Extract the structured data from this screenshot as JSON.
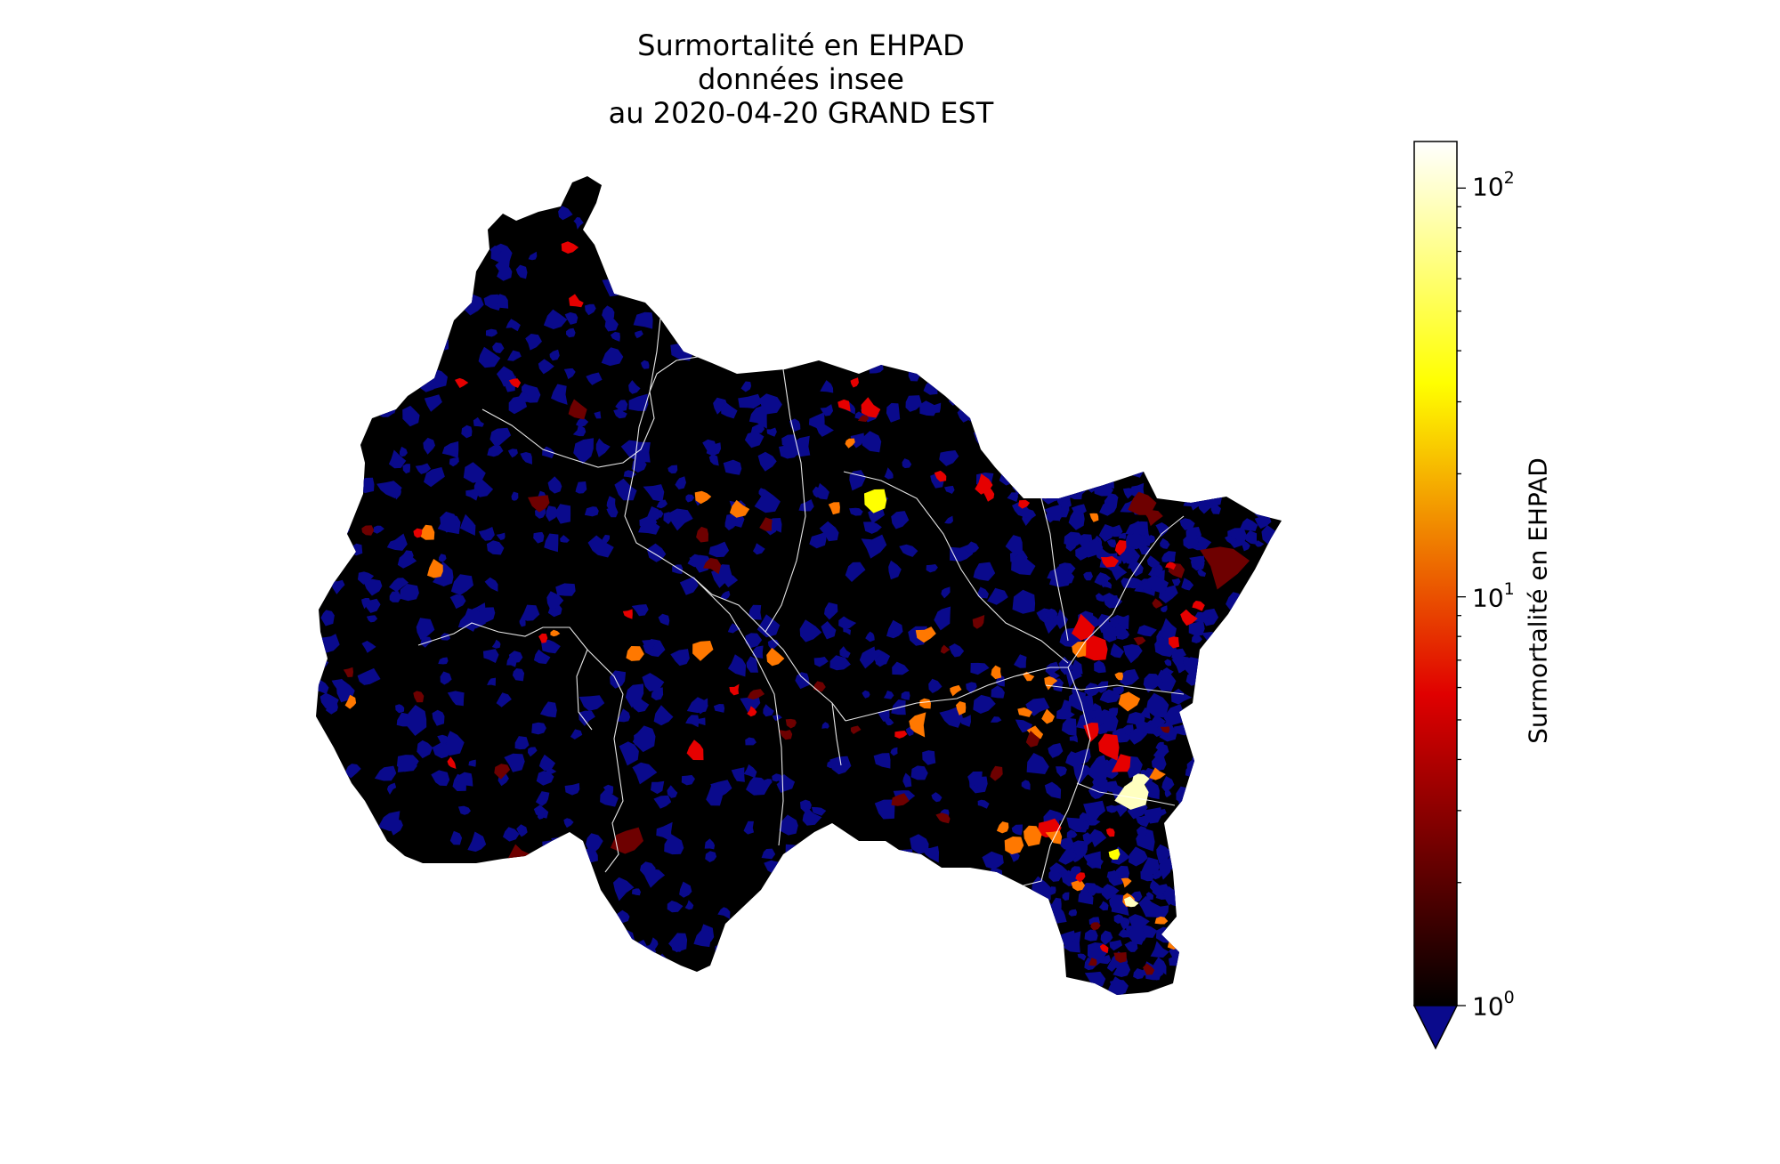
{
  "title_lines": [
    "Surmortalité en EHPAD",
    "données insee",
    "au 2020-04-20 GRAND EST"
  ],
  "colorbar": {
    "label": "Surmortalité en EHPAD",
    "scale": "log",
    "range": [
      1,
      130
    ],
    "ticks": [
      {
        "base": "10",
        "exp": "2",
        "value": 100
      },
      {
        "base": "10",
        "exp": "1",
        "value": 10
      },
      {
        "base": "10",
        "exp": "0",
        "value": 1
      }
    ],
    "colormap": "hot",
    "under_color": "#0a0a8c",
    "extend": "min"
  },
  "map": {
    "region": "GRAND EST",
    "colors": {
      "background": "#ffffff",
      "below_range": "#0a0a8c",
      "low": "#000000",
      "dark_red": "#6e0000",
      "red": "#e60000",
      "orange": "#ff7800",
      "yellow": "#ffff00",
      "pale_yellow": "#ffffc0",
      "borders": "#ffffff"
    }
  }
}
